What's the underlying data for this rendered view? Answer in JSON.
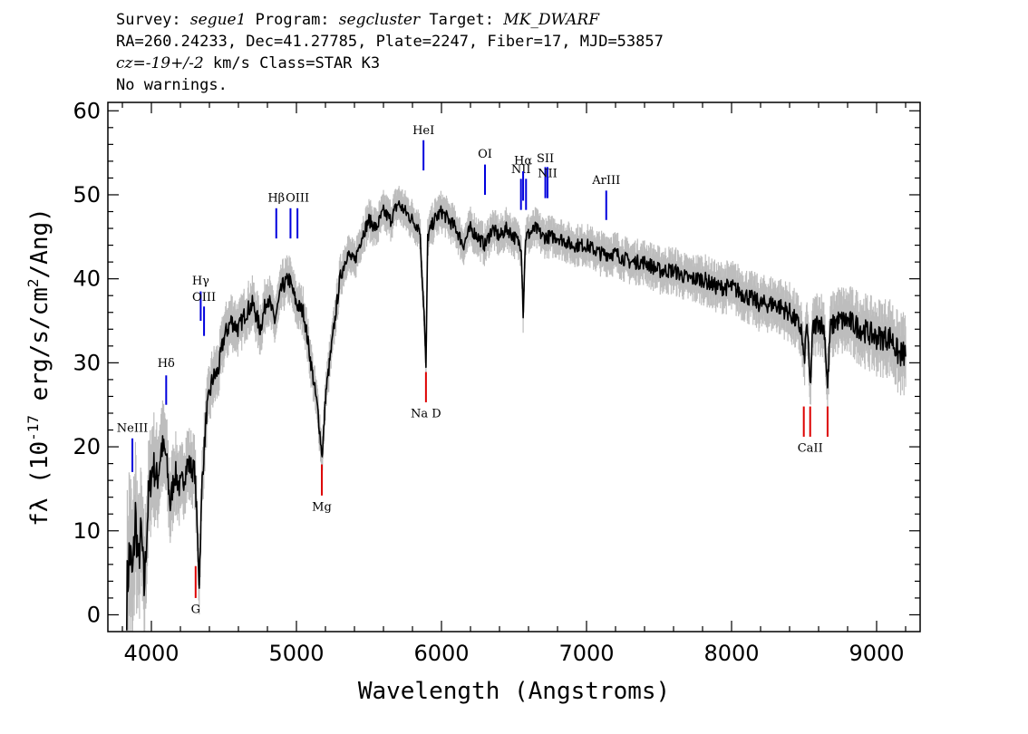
{
  "header": {
    "survey_label": "Survey:",
    "survey": "segue1",
    "program_label": "Program:",
    "program": "segcluster",
    "target_label": "Target:",
    "target": "MK_DWARF",
    "line2": "RA=260.24233, Dec=41.27785, Plate=2247, Fiber=17, MJD=53857",
    "cz_label": "cz=",
    "cz_value": "-19+/-2",
    "cz_rest": " km/s Class=STAR K3",
    "warnings": "No warnings."
  },
  "chart_data": {
    "type": "line",
    "title": "",
    "xlabel": "Wavelength (Angstroms)",
    "ylabel_prefix": "fλ (10",
    "ylabel_exp": "-17",
    "ylabel_mid": " erg/s/cm",
    "ylabel_exp2": "2",
    "ylabel_suffix": "/Ang)",
    "xlim": [
      3700,
      9300
    ],
    "ylim": [
      -2,
      61
    ],
    "xticks": [
      4000,
      5000,
      6000,
      7000,
      8000,
      9000
    ],
    "yticks": [
      0,
      10,
      20,
      30,
      40,
      50,
      60
    ],
    "grid": false,
    "colors": {
      "flux": "#000000",
      "error": "#bdbdbd",
      "emission": "#0000dd",
      "absorption": "#dd0000"
    },
    "series": [
      {
        "x": [
          3830,
          3850,
          3870,
          3890,
          3910,
          3930,
          3950,
          3980,
          4010,
          4040,
          4070,
          4100,
          4130,
          4160,
          4200,
          4250,
          4300,
          4330,
          4350,
          4380,
          4420,
          4460,
          4500,
          4550,
          4600,
          4650,
          4700,
          4750,
          4800,
          4850,
          4900,
          4950,
          5000,
          5050,
          5100,
          5150,
          5170,
          5180,
          5200,
          5250,
          5300,
          5350,
          5400,
          5450,
          5500,
          5550,
          5600,
          5650,
          5700,
          5750,
          5800,
          5850,
          5880,
          5893,
          5905,
          5950,
          6000,
          6050,
          6100,
          6150,
          6200,
          6250,
          6300,
          6350,
          6400,
          6450,
          6500,
          6550,
          6563,
          6580,
          6650,
          6700,
          6800,
          6900,
          7000,
          7100,
          7200,
          7300,
          7400,
          7500,
          7600,
          7700,
          7800,
          7900,
          8000,
          8100,
          8200,
          8300,
          8400,
          8480,
          8500,
          8520,
          8542,
          8560,
          8600,
          8640,
          8662,
          8680,
          8720,
          8800,
          8900,
          9000,
          9100,
          9150,
          9200
        ],
        "y": [
          2,
          8,
          4,
          12,
          6,
          10,
          3,
          14,
          18,
          16,
          20,
          19,
          13,
          17,
          15,
          18,
          17,
          4,
          16,
          24,
          28,
          29,
          33,
          35,
          34,
          36,
          37,
          34,
          38,
          35,
          39,
          40,
          37,
          36,
          30,
          24,
          20,
          19,
          26,
          33,
          40,
          43,
          42,
          45,
          47,
          46,
          48,
          47,
          49,
          48,
          47,
          46,
          36,
          29,
          45,
          47,
          48,
          47,
          46,
          44,
          46,
          45,
          44,
          46,
          45,
          46,
          45,
          44,
          36,
          45,
          46,
          45,
          45,
          44,
          44,
          43,
          43,
          42,
          42,
          41,
          41,
          40,
          40,
          39,
          39,
          38,
          37,
          37,
          36,
          34,
          30,
          35,
          27,
          34,
          35,
          34,
          27,
          34,
          35,
          35,
          34,
          33,
          33,
          31,
          31
        ],
        "err": [
          7,
          7,
          6,
          6,
          5,
          5,
          5,
          4,
          4,
          4,
          3.5,
          3.5,
          3.2,
          3,
          3,
          2.8,
          2.6,
          2.6,
          2.5,
          2.4,
          2.3,
          2.2,
          2.2,
          2.1,
          2,
          2,
          2,
          2,
          2,
          1.9,
          1.9,
          1.8,
          1.8,
          1.8,
          1.7,
          1.7,
          1.7,
          1.7,
          1.7,
          1.6,
          1.6,
          1.6,
          1.5,
          1.5,
          1.5,
          1.5,
          1.5,
          1.5,
          1.5,
          1.5,
          1.5,
          1.5,
          1.5,
          1.5,
          1.5,
          1.5,
          1.5,
          1.5,
          1.5,
          1.5,
          1.5,
          1.5,
          1.5,
          1.5,
          1.5,
          1.5,
          1.5,
          1.5,
          1.5,
          1.5,
          1.5,
          1.5,
          1.5,
          1.5,
          1.5,
          1.6,
          1.6,
          1.6,
          1.6,
          1.7,
          1.7,
          1.7,
          1.8,
          1.8,
          1.9,
          1.9,
          2,
          2,
          2.1,
          2.2,
          2.2,
          2.2,
          2.2,
          2.2,
          2.3,
          2.3,
          2.3,
          2.3,
          2.4,
          2.5,
          2.6,
          2.7,
          2.8,
          2.9,
          3
        ]
      }
    ],
    "lines": [
      {
        "label": "NeIII",
        "wave": 3869,
        "kind": "emission",
        "y1": 17,
        "y2": 21,
        "label_y": 21.8
      },
      {
        "label": "Hδ",
        "wave": 4102,
        "kind": "emission",
        "y1": 25,
        "y2": 28.5,
        "label_y": 29.5
      },
      {
        "label": "Hγ",
        "wave": 4340,
        "kind": "emission",
        "y1": 35,
        "y2": 38.5,
        "label_y": 39.3
      },
      {
        "label": "OIII",
        "wave": 4363,
        "kind": "emission",
        "y1": 33.2,
        "y2": 36.7,
        "label_y": 37.4
      },
      {
        "label": "Hβ",
        "wave": 4861,
        "kind": "emission",
        "y1": 44.8,
        "y2": 48.4,
        "label_y": 49.2
      },
      {
        "label": "",
        "wave": 4959,
        "kind": "emission",
        "y1": 44.8,
        "y2": 48.4,
        "label_y": 49.2
      },
      {
        "label": "OIII",
        "wave": 5007,
        "kind": "emission",
        "y1": 44.8,
        "y2": 48.4,
        "label_y": 49.2
      },
      {
        "label": "HeI",
        "wave": 5876,
        "kind": "emission",
        "y1": 52.9,
        "y2": 56.5,
        "label_y": 57.2
      },
      {
        "label": "OI",
        "wave": 6300,
        "kind": "emission",
        "y1": 50,
        "y2": 53.6,
        "label_y": 54.4
      },
      {
        "label": "NII",
        "wave": 6548,
        "kind": "emission",
        "y1": 48.2,
        "y2": 51.9,
        "label_y": 52.6
      },
      {
        "label": "Hα",
        "wave": 6563,
        "kind": "emission",
        "y1": 49.3,
        "y2": 52.8,
        "label_y": 53.6
      },
      {
        "label": "",
        "wave": 6583,
        "kind": "emission",
        "y1": 48.2,
        "y2": 51.9,
        "label_y": 52.6
      },
      {
        "label": "SII",
        "wave": 6716,
        "kind": "emission",
        "y1": 49.6,
        "y2": 53.3,
        "label_y": 53.9
      },
      {
        "label": "NII",
        "wave": 6731,
        "kind": "emission",
        "y1": 49.6,
        "y2": 53.3,
        "label_y": 52.1
      },
      {
        "label": "ArIII",
        "wave": 7136,
        "kind": "emission",
        "y1": 47,
        "y2": 50.5,
        "label_y": 51.3
      },
      {
        "label": "G",
        "wave": 4305,
        "kind": "absorption",
        "y1": 2,
        "y2": 5.8,
        "label_y": 0.2
      },
      {
        "label": "Mg",
        "wave": 5175,
        "kind": "absorption",
        "y1": 14.2,
        "y2": 17.9,
        "label_y": 12.4
      },
      {
        "label": "Na D",
        "wave": 5893,
        "kind": "absorption",
        "y1": 25.3,
        "y2": 28.9,
        "label_y": 23.5
      },
      {
        "label": "CaII",
        "wave": 8542,
        "kind": "absorption",
        "y1": 21.2,
        "y2": 24.8,
        "label_y": 19.4
      },
      {
        "label": "",
        "wave": 8498,
        "kind": "absorption",
        "y1": 21.2,
        "y2": 24.8,
        "label_y": 19.4
      },
      {
        "label": "",
        "wave": 8662,
        "kind": "absorption",
        "y1": 21.2,
        "y2": 24.8,
        "label_y": 19.4
      }
    ]
  }
}
